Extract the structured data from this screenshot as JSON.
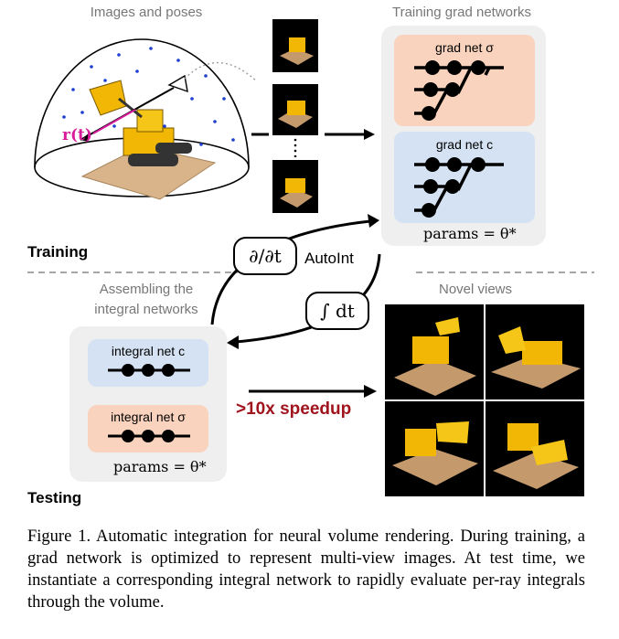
{
  "header": {
    "images_and_poses": "Images and poses",
    "training_grad_networks": "Training grad networks"
  },
  "grad_nets": {
    "sigma_title": "grad net σ",
    "c_title": "grad net c",
    "params": "params = θ*"
  },
  "stage_labels": {
    "training": "Training",
    "testing": "Testing"
  },
  "operators": {
    "derivative": "∂/∂t",
    "autoint": "AutoInt",
    "integral": "∫ dt"
  },
  "integral_nets": {
    "heading_line1": "Assembling the",
    "heading_line2": "integral networks",
    "c_title": "integral net c",
    "sigma_title": "integral net σ",
    "params": "params = θ*"
  },
  "novel_views": {
    "heading": "Novel views"
  },
  "speedup": ">10x speedup",
  "ray_label": "r(t)",
  "caption": {
    "text": "Figure 1. Automatic integration for neural volume rendering. During training, a grad network is optimized to represent multi-view images. At test time, we instantiate a corresponding integral network to rapidly evaluate per-ray integrals through the volume."
  },
  "colors": {
    "sigma_box": "#f9d3bd",
    "c_box": "#d5e2f3",
    "panel": "#efefef",
    "speedup": "#a0141e",
    "ray": "#d81b9b",
    "sample_dots": "#1f3fd0"
  }
}
